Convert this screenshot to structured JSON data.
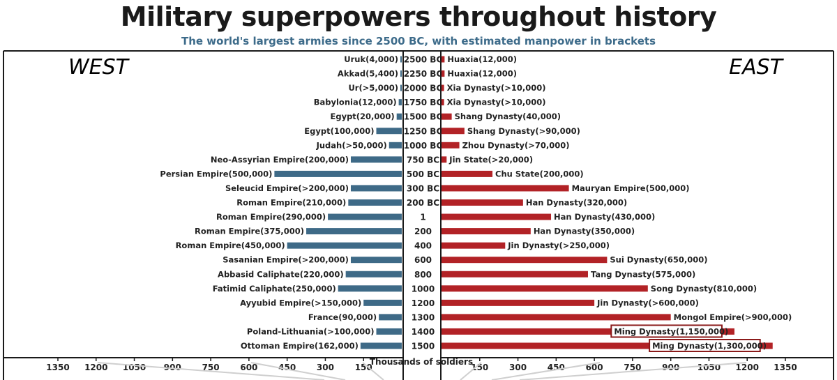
{
  "chart_data": {
    "type": "bar",
    "title": "Military superpowers throughout history",
    "subtitle": "The world's largest armies since 2500 BC, with estimated manpower in brackets",
    "xlabel": "Thousands of soldiers",
    "west_label": "WEST",
    "east_label": "EAST",
    "xlim": [
      0,
      1350
    ],
    "ticks_left": [
      "1350",
      "1200",
      "1050",
      "900",
      "750",
      "600",
      "450",
      "300",
      "150"
    ],
    "ticks_right": [
      "150",
      "300",
      "450",
      "600",
      "750",
      "900",
      "1050",
      "1200",
      "1350"
    ],
    "tick_values": [
      1350,
      1200,
      1050,
      900,
      750,
      600,
      450,
      300,
      150
    ],
    "colors": {
      "west": "#3e6a87",
      "east": "#b22226",
      "frame": "#1a1a1a",
      "highlight_box": "#8b1a1a"
    },
    "categories": [
      "2500 BC",
      "2250 BC",
      "2000 BC",
      "1750 BC",
      "1500 BC",
      "1250 BC",
      "1000 BC",
      "750 BC",
      "500 BC",
      "300 BC",
      "200 BC",
      "1",
      "200",
      "400",
      "600",
      "800",
      "1000",
      "1200",
      "1300",
      "1400",
      "1500"
    ],
    "series": [
      {
        "name": "WEST",
        "values": [
          4,
          5.4,
          5,
          12,
          20,
          100,
          50,
          200,
          500,
          200,
          210,
          290,
          375,
          450,
          200,
          220,
          250,
          150,
          90,
          100,
          162
        ],
        "labels": [
          "Uruk(4,000)",
          "Akkad(5,400)",
          "Ur(>5,000)",
          "Babylonia(12,000)",
          "Egypt(20,000)",
          "Egypt(100,000)",
          "Judah(>50,000)",
          "Neo-Assyrian Empire(200,000)",
          "Persian Empire(500,000)",
          "Seleucid Empire(>200,000)",
          "Roman Empire(210,000)",
          "Roman Empire(290,000)",
          "Roman Empire(375,000)",
          "Roman Empire(450,000)",
          "Sasanian Empire(>200,000)",
          "Abbasid Caliphate(220,000)",
          "Fatimid Caliphate(250,000)",
          "Ayyubid Empire(>150,000)",
          "France(90,000)",
          "Poland-Lithuania(>100,000)",
          "Ottoman Empire(162,000)"
        ]
      },
      {
        "name": "EAST",
        "values": [
          12,
          12,
          10,
          10,
          40,
          90,
          70,
          20,
          200,
          500,
          320,
          430,
          350,
          250,
          650,
          575,
          810,
          600,
          900,
          1150,
          1300
        ],
        "labels": [
          "Huaxia(12,000)",
          "Huaxia(12,000)",
          "Xia Dynasty(>10,000)",
          "Xia Dynasty(>10,000)",
          "Shang Dynasty(40,000)",
          "Shang Dynasty(>90,000)",
          "Zhou Dynasty(>70,000)",
          "Jin State(>20,000)",
          "Chu State(200,000)",
          "Mauryan Empire(500,000)",
          "Han Dynasty(320,000)",
          "Han Dynasty(430,000)",
          "Han Dynasty(350,000)",
          "Jin Dynasty(>250,000)",
          "Sui Dynasty(650,000)",
          "Tang Dynasty(575,000)",
          "Song Dynasty(810,000)",
          "Jin Dynasty(>600,000)",
          "Mongol Empire(>900,000)",
          "Ming Dynasty(1,150,000)",
          "Ming Dynasty(1,300,000)"
        ],
        "boxed": [
          19,
          20
        ]
      }
    ]
  }
}
